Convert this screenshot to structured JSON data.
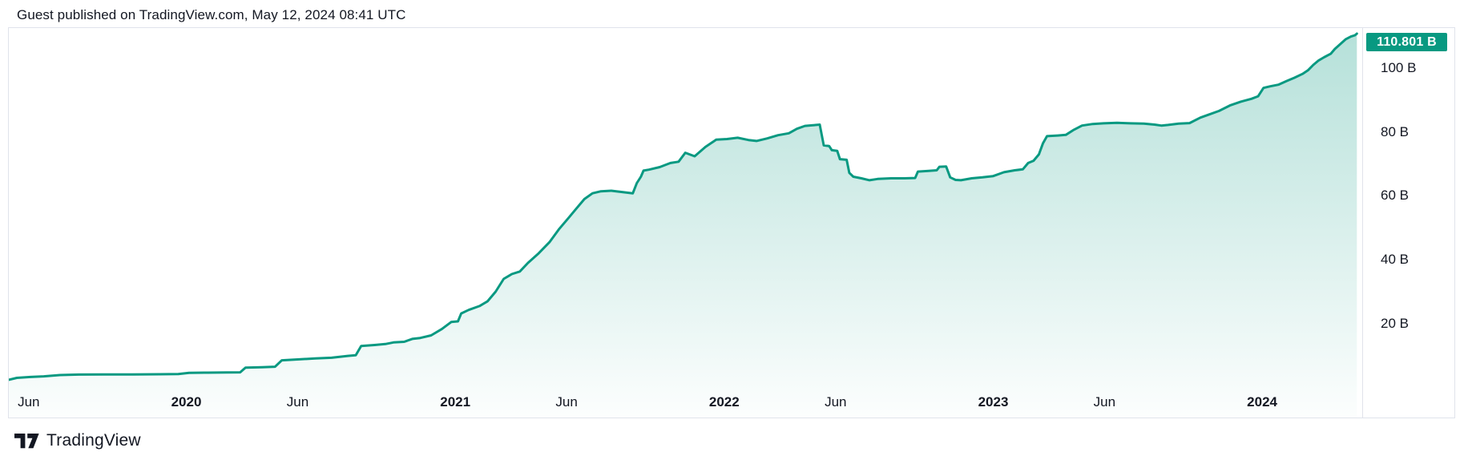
{
  "header": {
    "attribution": "Guest published on TradingView.com, May 12, 2024 08:41 UTC"
  },
  "footer": {
    "brand": "TradingView",
    "logo_icon": "tradingview-logo"
  },
  "colors": {
    "accent": "#089981",
    "badge_bg": "#089981",
    "badge_text": "#ffffff",
    "panel_border": "#e0e3eb",
    "text": "#131722",
    "fill_top": "rgba(8,153,129,0.30)",
    "fill_bottom": "rgba(8,153,129,0.01)"
  },
  "chart_data": {
    "type": "area",
    "title": "",
    "xlabel": "",
    "ylabel": "",
    "grid": false,
    "legend": "none",
    "last_value": 110.801,
    "last_value_label": "110.801 B",
    "unit": "B",
    "xlim": [
      2019.34,
      2024.372
    ],
    "ylim": [
      -9.41,
      112.55
    ],
    "x_ticks": [
      {
        "t": 2019.414,
        "label": "Jun",
        "year": false
      },
      {
        "t": 2020.0,
        "label": "2020",
        "year": true
      },
      {
        "t": 2020.414,
        "label": "Jun",
        "year": false
      },
      {
        "t": 2021.0,
        "label": "2021",
        "year": true
      },
      {
        "t": 2021.414,
        "label": "Jun",
        "year": false
      },
      {
        "t": 2022.0,
        "label": "2022",
        "year": true
      },
      {
        "t": 2022.414,
        "label": "Jun",
        "year": false
      },
      {
        "t": 2023.0,
        "label": "2023",
        "year": true
      },
      {
        "t": 2023.414,
        "label": "Jun",
        "year": false
      },
      {
        "t": 2024.0,
        "label": "2024",
        "year": true
      }
    ],
    "y_ticks": [
      {
        "v": 100,
        "label": "100 B"
      },
      {
        "v": 80,
        "label": "80 B"
      },
      {
        "v": 60,
        "label": "60 B"
      },
      {
        "v": 40,
        "label": "40 B"
      },
      {
        "v": 20,
        "label": "20 B"
      }
    ],
    "points": [
      [
        2019.34,
        2.4
      ],
      [
        2019.37,
        3.0
      ],
      [
        2019.42,
        3.3
      ],
      [
        2019.47,
        3.5
      ],
      [
        2019.53,
        3.9
      ],
      [
        2019.6,
        4.05
      ],
      [
        2019.7,
        4.1
      ],
      [
        2019.8,
        4.1
      ],
      [
        2019.9,
        4.15
      ],
      [
        2019.97,
        4.2
      ],
      [
        2020.01,
        4.6
      ],
      [
        2020.08,
        4.65
      ],
      [
        2020.15,
        4.7
      ],
      [
        2020.2,
        4.75
      ],
      [
        2020.22,
        6.2
      ],
      [
        2020.28,
        6.35
      ],
      [
        2020.33,
        6.5
      ],
      [
        2020.355,
        8.5
      ],
      [
        2020.42,
        8.8
      ],
      [
        2020.48,
        9.1
      ],
      [
        2020.54,
        9.3
      ],
      [
        2020.6,
        9.9
      ],
      [
        2020.63,
        10.1
      ],
      [
        2020.65,
        13.0
      ],
      [
        2020.7,
        13.3
      ],
      [
        2020.74,
        13.6
      ],
      [
        2020.77,
        14.1
      ],
      [
        2020.81,
        14.3
      ],
      [
        2020.84,
        15.2
      ],
      [
        2020.87,
        15.5
      ],
      [
        2020.91,
        16.3
      ],
      [
        2020.95,
        18.3
      ],
      [
        2020.985,
        20.5
      ],
      [
        2021.01,
        20.7
      ],
      [
        2021.022,
        23.2
      ],
      [
        2021.05,
        24.3
      ],
      [
        2021.09,
        25.5
      ],
      [
        2021.12,
        27.0
      ],
      [
        2021.15,
        30.0
      ],
      [
        2021.18,
        34.0
      ],
      [
        2021.21,
        35.5
      ],
      [
        2021.24,
        36.3
      ],
      [
        2021.27,
        39.0
      ],
      [
        2021.31,
        42.0
      ],
      [
        2021.35,
        45.5
      ],
      [
        2021.385,
        49.5
      ],
      [
        2021.42,
        53.0
      ],
      [
        2021.45,
        56.0
      ],
      [
        2021.48,
        59.0
      ],
      [
        2021.51,
        60.8
      ],
      [
        2021.54,
        61.4
      ],
      [
        2021.58,
        61.6
      ],
      [
        2021.62,
        61.2
      ],
      [
        2021.66,
        60.8
      ],
      [
        2021.675,
        64.0
      ],
      [
        2021.69,
        66.0
      ],
      [
        2021.7,
        67.9
      ],
      [
        2021.72,
        68.2
      ],
      [
        2021.76,
        69.0
      ],
      [
        2021.8,
        70.3
      ],
      [
        2021.83,
        70.7
      ],
      [
        2021.855,
        73.5
      ],
      [
        2021.89,
        72.4
      ],
      [
        2021.93,
        75.3
      ],
      [
        2021.97,
        77.6
      ],
      [
        2022.01,
        77.8
      ],
      [
        2022.05,
        78.2
      ],
      [
        2022.09,
        77.5
      ],
      [
        2022.12,
        77.2
      ],
      [
        2022.16,
        78.0
      ],
      [
        2022.2,
        79.0
      ],
      [
        2022.24,
        79.6
      ],
      [
        2022.27,
        81.0
      ],
      [
        2022.3,
        81.9
      ],
      [
        2022.33,
        82.1
      ],
      [
        2022.355,
        82.3
      ],
      [
        2022.37,
        75.8
      ],
      [
        2022.39,
        75.6
      ],
      [
        2022.4,
        74.3
      ],
      [
        2022.42,
        74.1
      ],
      [
        2022.43,
        71.5
      ],
      [
        2022.455,
        71.3
      ],
      [
        2022.465,
        67.2
      ],
      [
        2022.48,
        66.0
      ],
      [
        2022.51,
        65.5
      ],
      [
        2022.54,
        64.9
      ],
      [
        2022.57,
        65.3
      ],
      [
        2022.62,
        65.5
      ],
      [
        2022.67,
        65.5
      ],
      [
        2022.71,
        65.6
      ],
      [
        2022.72,
        67.6
      ],
      [
        2022.76,
        67.8
      ],
      [
        2022.79,
        68.0
      ],
      [
        2022.8,
        69.1
      ],
      [
        2022.825,
        69.2
      ],
      [
        2022.84,
        65.8
      ],
      [
        2022.86,
        65.0
      ],
      [
        2022.88,
        64.9
      ],
      [
        2022.92,
        65.5
      ],
      [
        2022.96,
        65.8
      ],
      [
        2023.0,
        66.2
      ],
      [
        2023.04,
        67.4
      ],
      [
        2023.08,
        68.0
      ],
      [
        2023.11,
        68.3
      ],
      [
        2023.13,
        70.3
      ],
      [
        2023.15,
        71.0
      ],
      [
        2023.17,
        73.0
      ],
      [
        2023.185,
        76.5
      ],
      [
        2023.2,
        78.7
      ],
      [
        2023.24,
        78.9
      ],
      [
        2023.27,
        79.1
      ],
      [
        2023.3,
        80.7
      ],
      [
        2023.33,
        82.0
      ],
      [
        2023.37,
        82.5
      ],
      [
        2023.41,
        82.7
      ],
      [
        2023.46,
        82.9
      ],
      [
        2023.51,
        82.7
      ],
      [
        2023.56,
        82.6
      ],
      [
        2023.6,
        82.3
      ],
      [
        2023.625,
        82.0
      ],
      [
        2023.65,
        82.2
      ],
      [
        2023.69,
        82.6
      ],
      [
        2023.73,
        82.8
      ],
      [
        2023.77,
        84.5
      ],
      [
        2023.8,
        85.4
      ],
      [
        2023.84,
        86.6
      ],
      [
        2023.88,
        88.3
      ],
      [
        2023.92,
        89.5
      ],
      [
        2023.96,
        90.4
      ],
      [
        2023.985,
        91.2
      ],
      [
        2024.005,
        93.8
      ],
      [
        2024.03,
        94.3
      ],
      [
        2024.06,
        94.8
      ],
      [
        2024.09,
        95.9
      ],
      [
        2024.12,
        97.0
      ],
      [
        2024.15,
        98.2
      ],
      [
        2024.17,
        99.3
      ],
      [
        2024.19,
        101.0
      ],
      [
        2024.21,
        102.4
      ],
      [
        2024.23,
        103.4
      ],
      [
        2024.255,
        104.5
      ],
      [
        2024.27,
        106.0
      ],
      [
        2024.29,
        107.5
      ],
      [
        2024.31,
        109.0
      ],
      [
        2024.33,
        109.9
      ],
      [
        2024.345,
        110.3
      ],
      [
        2024.352,
        110.801
      ]
    ]
  }
}
